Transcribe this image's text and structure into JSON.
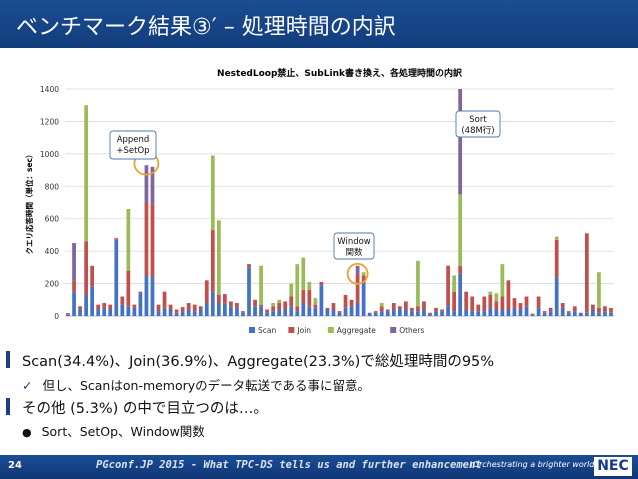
{
  "slide": {
    "title": "ベンチマーク結果③′ – 処理時間の内訳",
    "page_number": "24",
    "footer_text": "PGconf.JP 2015 - What TPC-DS tells us and further enhancement",
    "tagline": "\\Orchestrating a brighter world",
    "logo_text": "NEC"
  },
  "bullets": [
    {
      "text": "Scan(34.4%)、Join(36.9%)、Aggregate(23.3%)で総処理時間の95%"
    },
    {
      "text": "その他 (5.3%) の中で目立つのは…。"
    }
  ],
  "subbullets": [
    {
      "marker": "✓",
      "text": "但し、Scanはon-memoryのデータ転送である事に留意。"
    },
    {
      "marker": "●",
      "text": "Sort、SetOp、Window関数"
    }
  ],
  "chart_data": {
    "type": "bar",
    "stacked": true,
    "title": "NestedLoop禁止、SubLink書き換え、各処理時間の内訳",
    "ylabel": "クエリ応答時間（単位：sec）",
    "xlabel": "",
    "ylim": [
      0,
      1400
    ],
    "yticks": [
      0,
      200,
      400,
      600,
      800,
      1000,
      1200,
      1400
    ],
    "grid": true,
    "legend_position": "bottom",
    "series": [
      {
        "name": "Scan",
        "color": "#4472c4",
        "values": [
          8,
          150,
          40,
          130,
          180,
          40,
          50,
          40,
          470,
          70,
          60,
          50,
          140,
          250,
          240,
          30,
          50,
          40,
          20,
          25,
          40,
          30,
          40,
          80,
          150,
          80,
          75,
          60,
          50,
          20,
          300,
          60,
          60,
          20,
          30,
          40,
          40,
          60,
          30,
          80,
          60,
          50,
          190,
          40,
          40,
          20,
          50,
          60,
          80,
          200,
          20,
          20,
          30,
          30,
          40,
          40,
          40,
          30,
          30,
          40,
          10,
          30,
          30,
          60,
          30,
          260,
          40,
          30,
          30,
          30,
          50,
          40,
          40,
          40,
          50,
          40,
          60,
          10,
          50,
          20,
          30,
          240,
          50,
          20,
          30,
          20,
          20,
          40,
          20,
          30,
          20
        ]
      },
      {
        "name": "Join",
        "color": "#c0504d",
        "values": [
          10,
          70,
          20,
          330,
          130,
          30,
          30,
          30,
          10,
          50,
          220,
          20,
          10,
          450,
          450,
          40,
          100,
          30,
          20,
          30,
          40,
          40,
          20,
          140,
          380,
          50,
          60,
          30,
          30,
          10,
          20,
          40,
          10,
          20,
          30,
          40,
          50,
          60,
          30,
          80,
          100,
          20,
          20,
          10,
          40,
          10,
          80,
          40,
          180,
          50,
          0,
          10,
          30,
          10,
          40,
          20,
          50,
          20,
          30,
          50,
          10,
          20,
          10,
          250,
          120,
          50,
          110,
          90,
          40,
          90,
          80,
          50,
          80,
          180,
          60,
          40,
          60,
          5,
          70,
          10,
          20,
          230,
          30,
          10,
          30,
          0,
          490,
          30,
          30,
          30,
          30
        ]
      },
      {
        "name": "Aggregate",
        "color": "#9bbb59",
        "values": [
          0,
          0,
          0,
          840,
          0,
          0,
          0,
          0,
          0,
          0,
          380,
          0,
          0,
          0,
          0,
          0,
          0,
          0,
          0,
          0,
          0,
          0,
          0,
          0,
          460,
          460,
          0,
          0,
          0,
          0,
          0,
          0,
          240,
          0,
          20,
          20,
          0,
          80,
          260,
          200,
          50,
          40,
          0,
          0,
          0,
          0,
          0,
          0,
          0,
          20,
          0,
          0,
          20,
          0,
          0,
          0,
          0,
          0,
          280,
          0,
          0,
          0,
          0,
          0,
          100,
          440,
          0,
          0,
          0,
          0,
          20,
          50,
          200,
          0,
          0,
          0,
          0,
          0,
          0,
          0,
          0,
          20,
          0,
          0,
          0,
          0,
          0,
          0,
          220,
          0,
          0
        ]
      },
      {
        "name": "Others",
        "color": "#8064a2",
        "values": [
          0,
          230,
          0,
          0,
          0,
          0,
          0,
          0,
          0,
          0,
          0,
          0,
          0,
          230,
          230,
          0,
          0,
          0,
          0,
          0,
          0,
          0,
          0,
          0,
          0,
          0,
          0,
          0,
          0,
          0,
          0,
          0,
          0,
          0,
          0,
          0,
          0,
          0,
          0,
          0,
          0,
          0,
          0,
          0,
          0,
          0,
          0,
          0,
          50,
          0,
          0,
          0,
          0,
          0,
          0,
          0,
          0,
          0,
          0,
          0,
          0,
          0,
          0,
          0,
          0,
          650,
          0,
          0,
          0,
          0,
          0,
          0,
          0,
          0,
          0,
          0,
          0,
          0,
          0,
          0,
          0,
          0,
          0,
          0,
          0,
          0,
          0,
          0,
          0,
          0,
          0
        ]
      }
    ],
    "annotations": [
      {
        "text": "Append\n+SetOp",
        "target_index": 13
      },
      {
        "text": "Window\n関数",
        "target_index": 48
      },
      {
        "text": "Sort\n(48M行)",
        "target_index": 65
      }
    ]
  }
}
